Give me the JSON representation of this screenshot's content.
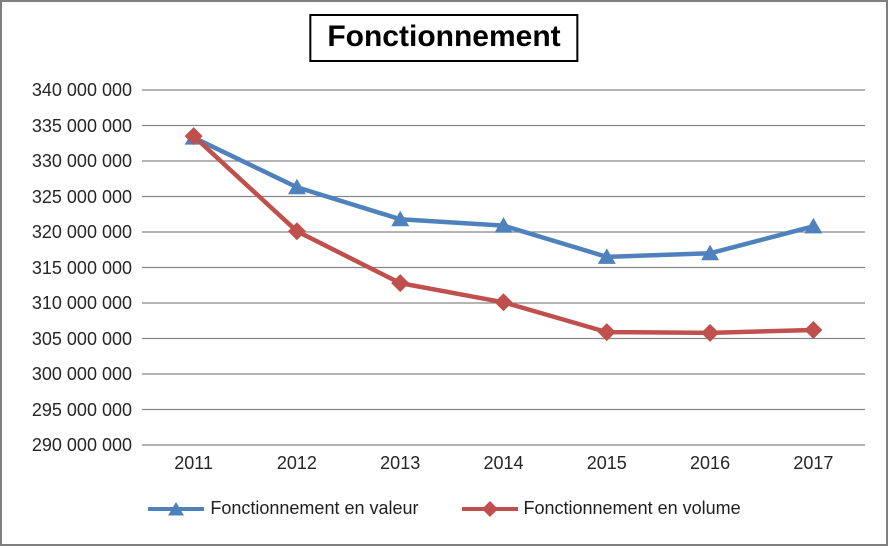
{
  "frame": {
    "border_color": "#7f7f7f",
    "background": "#ffffff"
  },
  "chart_data": {
    "type": "line",
    "title": "Fonctionnement",
    "categories": [
      "2011",
      "2012",
      "2013",
      "2014",
      "2015",
      "2016",
      "2017"
    ],
    "series": [
      {
        "name": "Fonctionnement en valeur",
        "color": "#4F81BD",
        "marker": "triangle",
        "values": [
          333300000,
          326300000,
          321800000,
          320900000,
          316500000,
          317000000,
          320800000
        ]
      },
      {
        "name": "Fonctionnement en volume",
        "color": "#C0504D",
        "marker": "diamond",
        "values": [
          333500000,
          320100000,
          312800000,
          310100000,
          305900000,
          305800000,
          306200000
        ]
      }
    ],
    "ylim": [
      290000000,
      340000000
    ],
    "ytick_step": 5000000,
    "ytick_labels": [
      "340 000 000",
      "335 000 000",
      "330 000 000",
      "325 000 000",
      "320 000 000",
      "315 000 000",
      "310 000 000",
      "305 000 000",
      "300 000 000",
      "295 000 000",
      "290 000 000"
    ],
    "xlabel": "",
    "ylabel": "",
    "grid": "horizontal",
    "gridline_color": "#878787",
    "axis_text_color": "#262626",
    "legend_position": "bottom"
  }
}
